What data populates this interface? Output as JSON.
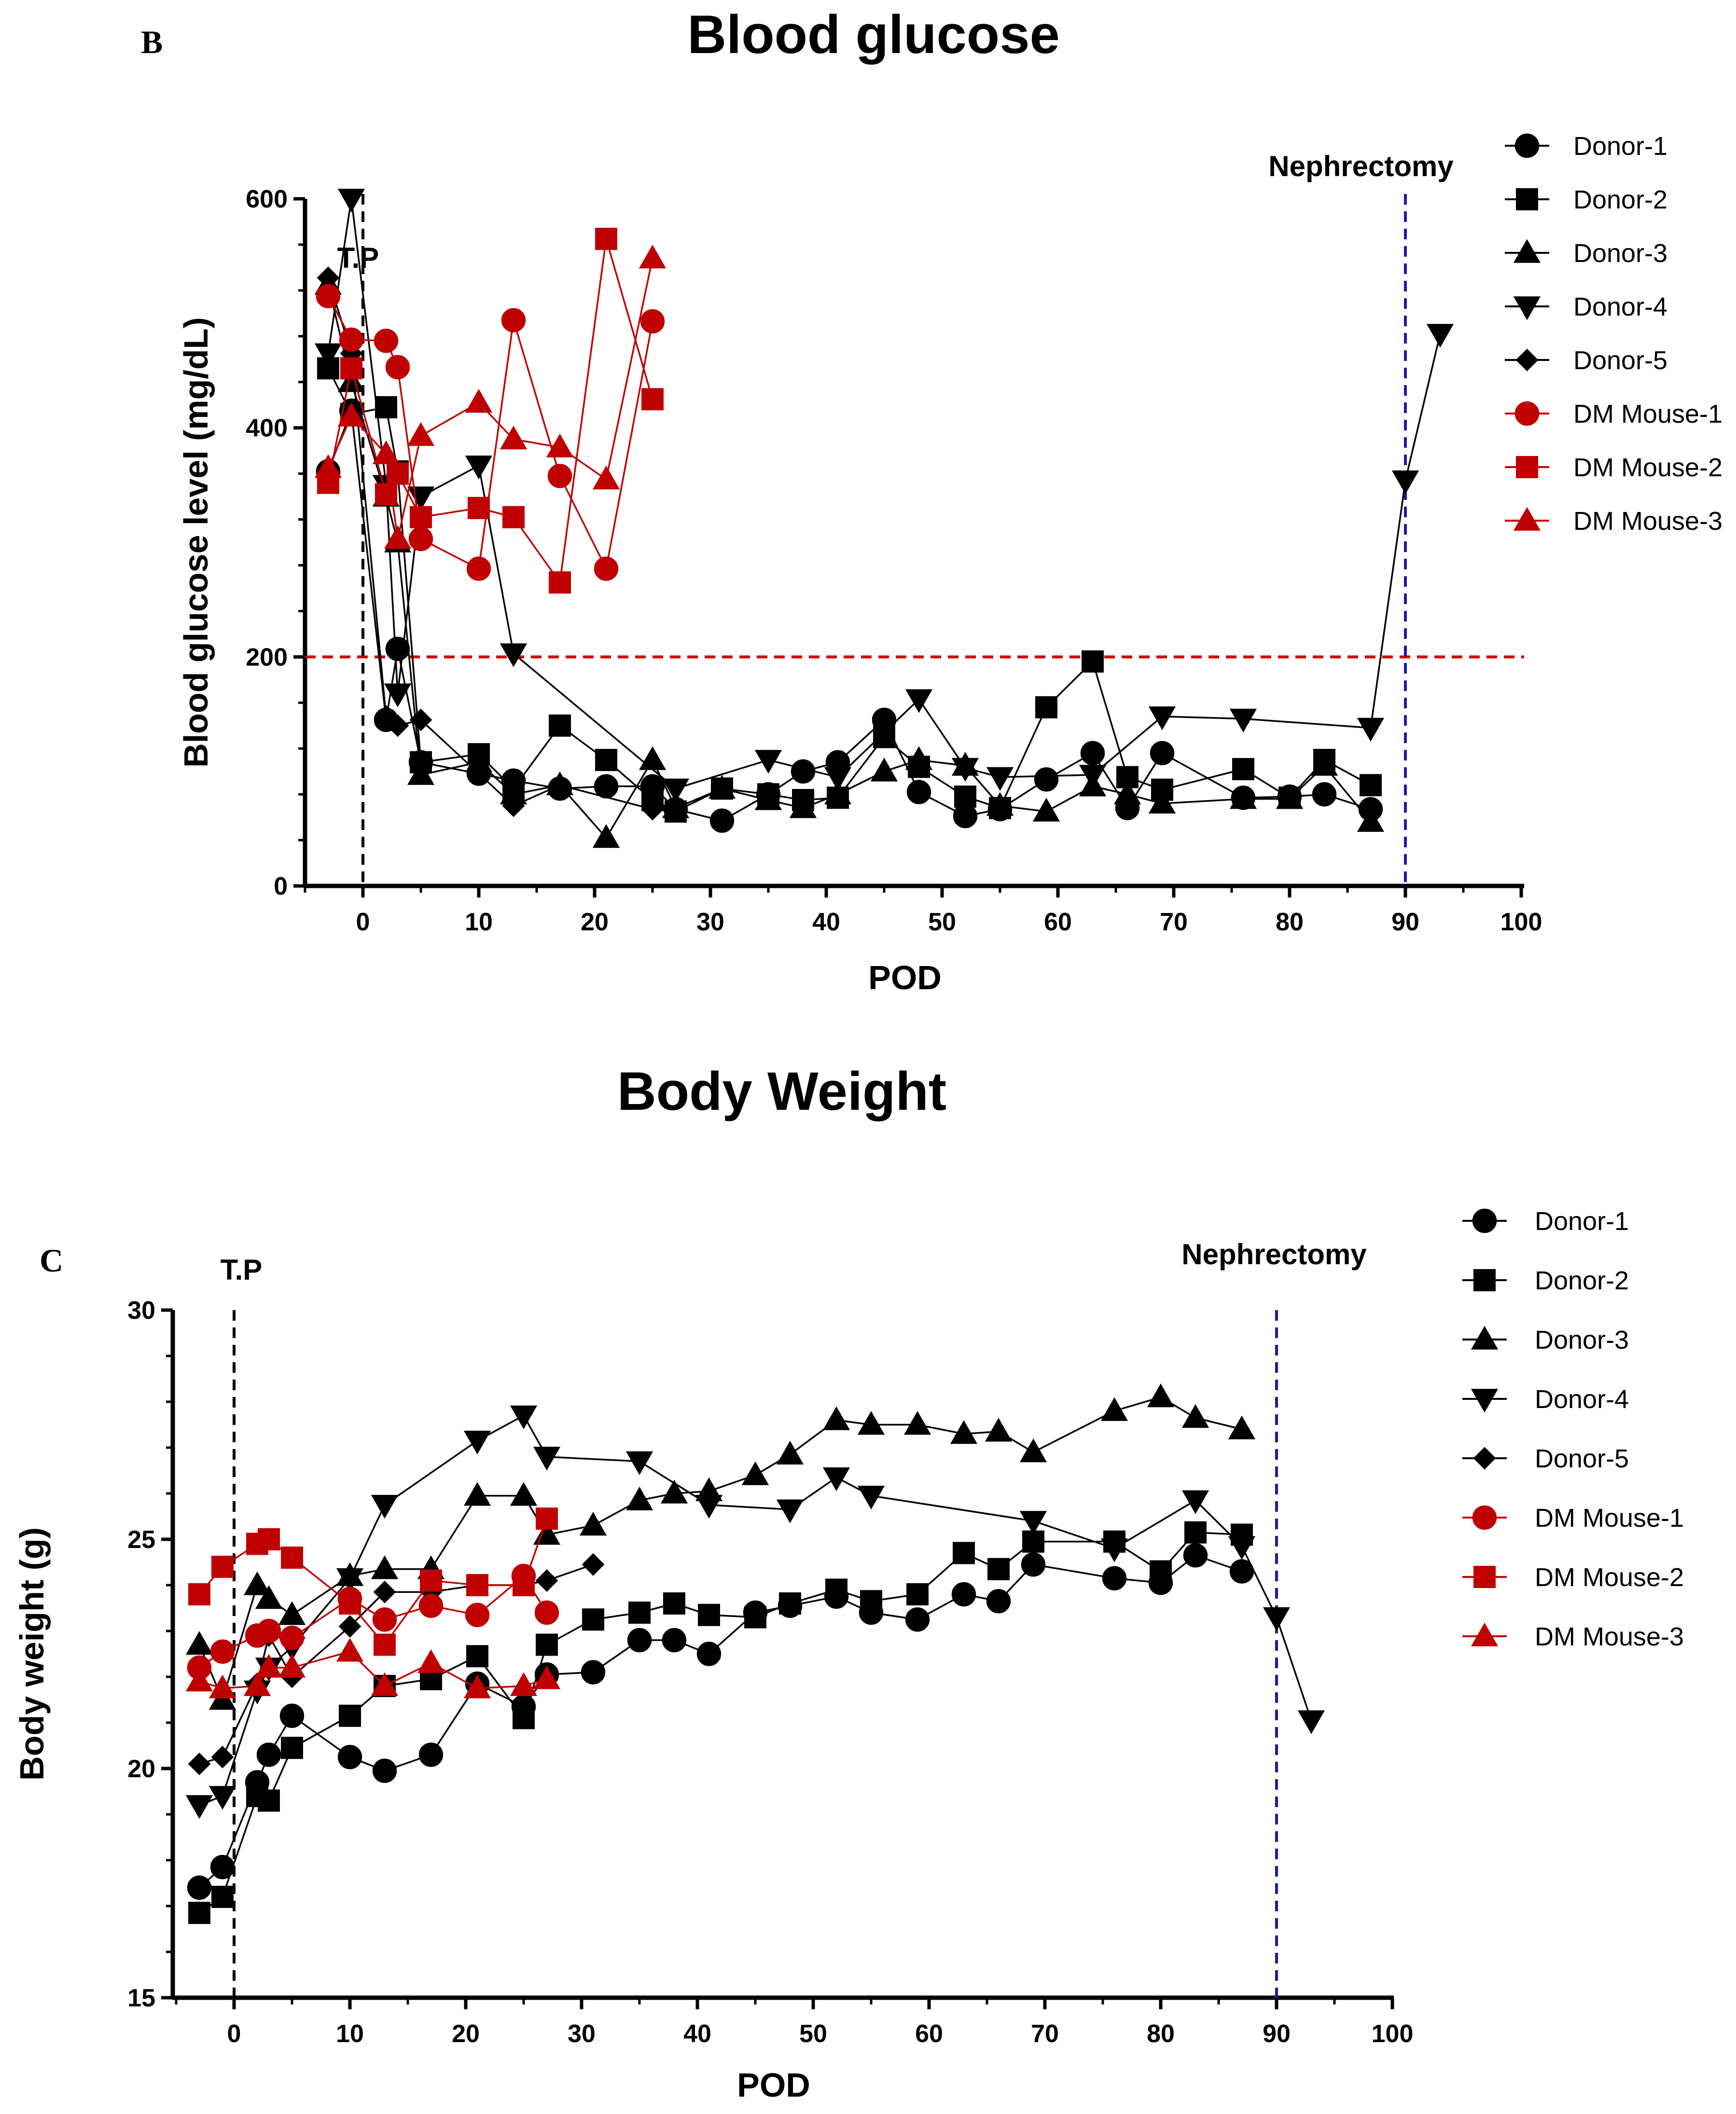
{
  "colors": {
    "black": "#000000",
    "red": "#c00000",
    "refline": "#cc0000",
    "nephline": "#1a1aa8"
  },
  "chart_data": [
    {
      "panel": "B",
      "type": "line",
      "title": "Blood glucose",
      "xlabel": "POD",
      "ylabel": "Blood glucose level (mg/dL)",
      "xlim": [
        -6,
        100
      ],
      "ylim": [
        0,
        600
      ],
      "xticks": [
        0,
        10,
        20,
        30,
        40,
        50,
        60,
        70,
        80,
        90,
        100
      ],
      "yticks": [
        0,
        200,
        400,
        600
      ],
      "annotations": [
        {
          "text": "T.P",
          "x": 0
        },
        {
          "text": "Nephrectomy",
          "x": 90
        }
      ],
      "reference_lines": [
        {
          "orientation": "horizontal",
          "value": 200,
          "style": "dashed",
          "color": "red"
        },
        {
          "orientation": "vertical",
          "value": 0,
          "style": "dashed",
          "color": "black"
        },
        {
          "orientation": "vertical",
          "value": 90,
          "style": "dashed",
          "color": "blue"
        }
      ],
      "legend": "top-right",
      "series": [
        {
          "name": "Donor-1",
          "marker": "circle",
          "color": "black",
          "x": [
            -3,
            -1,
            2,
            3,
            5,
            10,
            13,
            17,
            21,
            25,
            27,
            31,
            35,
            38,
            41,
            45,
            48,
            52,
            55,
            59,
            63,
            66,
            69,
            76,
            80,
            83,
            87
          ],
          "y": [
            362,
            415,
            145,
            207,
            108,
            98,
            92,
            85,
            87,
            87,
            67,
            57,
            80,
            100,
            108,
            145,
            82,
            61,
            67,
            93,
            116,
            68,
            116,
            77,
            78,
            80,
            67
          ]
        },
        {
          "name": "Donor-2",
          "marker": "square",
          "color": "black",
          "x": [
            -3,
            -1,
            2,
            3,
            5,
            10,
            13,
            17,
            21,
            25,
            27,
            31,
            35,
            38,
            41,
            45,
            48,
            52,
            55,
            59,
            63,
            66,
            69,
            76,
            80,
            83,
            87
          ],
          "y": [
            452,
            412,
            418,
            362,
            108,
            115,
            85,
            140,
            110,
            75,
            65,
            85,
            80,
            75,
            77,
            130,
            104,
            78,
            68,
            156,
            196,
            95,
            84,
            102,
            77,
            110,
            88
          ]
        },
        {
          "name": "Donor-3",
          "marker": "triangle-up",
          "color": "black",
          "x": [
            -3,
            -1,
            2,
            3,
            5,
            10,
            13,
            17,
            21,
            25,
            27,
            31,
            35,
            38,
            41,
            45,
            48,
            52,
            55,
            59,
            63,
            66,
            69,
            76,
            80,
            83,
            87
          ],
          "y": [
            525,
            440,
            340,
            300,
            97,
            108,
            80,
            88,
            42,
            110,
            68,
            85,
            75,
            68,
            80,
            100,
            110,
            105,
            70,
            65,
            87,
            80,
            72,
            76,
            76,
            105,
            56
          ]
        },
        {
          "name": "Donor-4",
          "marker": "triangle-down",
          "color": "black",
          "x": [
            -3,
            -1,
            2,
            3,
            5,
            10,
            13,
            27,
            35,
            41,
            48,
            52,
            55,
            63,
            69,
            76,
            87,
            90,
            93
          ],
          "y": [
            465,
            600,
            350,
            168,
            340,
            367,
            203,
            85,
            110,
            95,
            163,
            103,
            95,
            97,
            148,
            146,
            138,
            354,
            482
          ]
        },
        {
          "name": "Donor-5",
          "marker": "diamond",
          "color": "black",
          "x": [
            -3,
            -1,
            2,
            3,
            5,
            13,
            17,
            25
          ],
          "y": [
            531,
            465,
            148,
            140,
            145,
            70,
            88,
            67
          ]
        },
        {
          "name": "DM Mouse-1",
          "marker": "circle",
          "color": "red",
          "x": [
            -3,
            -1,
            2,
            3,
            5,
            10,
            13,
            17,
            21,
            25
          ],
          "y": [
            515,
            477,
            476,
            453,
            303,
            277,
            494,
            358,
            277,
            493
          ]
        },
        {
          "name": "DM Mouse-2",
          "marker": "square",
          "color": "red",
          "x": [
            -3,
            -1,
            2,
            3,
            5,
            10,
            13,
            17,
            21,
            25
          ],
          "y": [
            352,
            452,
            342,
            360,
            322,
            330,
            322,
            265,
            565,
            425
          ]
        },
        {
          "name": "DM Mouse-3",
          "marker": "triangle-up",
          "color": "red",
          "x": [
            -3,
            -1,
            2,
            3,
            5,
            10,
            13,
            17,
            21,
            25
          ],
          "y": [
            365,
            410,
            377,
            303,
            393,
            422,
            390,
            383,
            355,
            548
          ]
        }
      ]
    },
    {
      "panel": "C",
      "type": "line",
      "title": "Body Weight",
      "xlabel": "POD",
      "ylabel": "Body weight (g)",
      "xlim": [
        -5,
        100
      ],
      "ylim": [
        15,
        30
      ],
      "xticks": [
        0,
        10,
        20,
        30,
        40,
        50,
        60,
        70,
        80,
        90,
        100
      ],
      "yticks": [
        15,
        20,
        25,
        30
      ],
      "annotations": [
        {
          "text": "T.P",
          "x": 0
        },
        {
          "text": "Nephrectomy",
          "x": 90
        }
      ],
      "reference_lines": [
        {
          "orientation": "vertical",
          "value": 0,
          "style": "dashed",
          "color": "black"
        },
        {
          "orientation": "vertical",
          "value": 90,
          "style": "dashed",
          "color": "blue"
        }
      ],
      "legend": "top-right",
      "series": [
        {
          "name": "Donor-1",
          "marker": "circle",
          "color": "black",
          "x": [
            -3,
            -1,
            2,
            3,
            5,
            10,
            13,
            17,
            21,
            25,
            27,
            31,
            35,
            38,
            41,
            45,
            48,
            52,
            55,
            59,
            63,
            66,
            69,
            76,
            80,
            83,
            87
          ],
          "y": [
            17.4,
            17.85,
            19.7,
            20.3,
            21.15,
            20.25,
            19.95,
            20.3,
            21.85,
            21.35,
            22.05,
            22.1,
            22.8,
            22.8,
            22.5,
            23.4,
            23.55,
            23.75,
            23.4,
            23.25,
            23.8,
            23.65,
            24.45,
            24.15,
            24.05,
            24.65,
            24.3
          ]
        },
        {
          "name": "Donor-2",
          "marker": "square",
          "color": "black",
          "x": [
            -3,
            -1,
            2,
            3,
            5,
            10,
            13,
            17,
            21,
            25,
            27,
            31,
            35,
            38,
            41,
            45,
            48,
            52,
            55,
            59,
            63,
            66,
            69,
            76,
            80,
            83,
            87
          ],
          "y": [
            16.85,
            17.2,
            19.4,
            19.3,
            20.45,
            21.15,
            21.8,
            21.95,
            22.45,
            21.1,
            22.7,
            23.25,
            23.4,
            23.6,
            23.35,
            23.3,
            23.6,
            23.9,
            23.65,
            23.8,
            24.7,
            24.35,
            24.95,
            24.95,
            24.3,
            25.15,
            25.1
          ]
        },
        {
          "name": "Donor-3",
          "marker": "triangle-up",
          "color": "black",
          "x": [
            -3,
            -1,
            2,
            3,
            5,
            10,
            13,
            17,
            21,
            25,
            27,
            31,
            35,
            38,
            41,
            45,
            48,
            52,
            55,
            59,
            63,
            66,
            69,
            76,
            80,
            83,
            87
          ],
          "y": [
            22.7,
            21.5,
            24.0,
            23.7,
            23.35,
            24.2,
            24.35,
            24.35,
            25.95,
            25.95,
            25.1,
            25.3,
            25.85,
            26.0,
            26.05,
            26.4,
            26.85,
            27.6,
            27.5,
            27.5,
            27.3,
            27.35,
            26.9,
            27.8,
            28.1,
            27.65,
            27.4
          ]
        },
        {
          "name": "Donor-4",
          "marker": "triangle-down",
          "color": "black",
          "x": [
            -3,
            -1,
            2,
            3,
            5,
            10,
            13,
            21,
            25,
            27,
            35,
            41,
            48,
            52,
            55,
            69,
            76,
            83,
            87,
            90,
            93
          ],
          "y": [
            19.2,
            19.4,
            21.7,
            22.2,
            22.65,
            24.15,
            25.75,
            27.15,
            27.7,
            26.8,
            26.7,
            25.75,
            25.65,
            26.35,
            25.95,
            25.4,
            24.8,
            25.85,
            24.85,
            23.3,
            21.05
          ]
        },
        {
          "name": "Donor-5",
          "marker": "diamond",
          "color": "black",
          "x": [
            -3,
            -1,
            2,
            3,
            5,
            10,
            13,
            17,
            21,
            25,
            27,
            31
          ],
          "y": [
            20.1,
            20.25,
            21.85,
            22.9,
            22.0,
            23.1,
            23.85,
            23.85,
            24.0,
            24.0,
            24.1,
            24.45
          ]
        },
        {
          "name": "DM Mouse-1",
          "marker": "circle",
          "color": "red",
          "x": [
            -3,
            -1,
            2,
            3,
            5,
            10,
            13,
            17,
            21,
            25,
            27
          ],
          "y": [
            22.2,
            22.55,
            22.9,
            23.0,
            22.85,
            23.7,
            23.25,
            23.55,
            23.35,
            24.2,
            23.4
          ]
        },
        {
          "name": "DM Mouse-2",
          "marker": "square",
          "color": "red",
          "x": [
            -3,
            -1,
            2,
            3,
            5,
            10,
            13,
            17,
            21,
            25,
            27
          ],
          "y": [
            23.8,
            24.4,
            24.9,
            25.0,
            24.6,
            23.6,
            22.7,
            24.1,
            24.0,
            24.0,
            25.45
          ]
        },
        {
          "name": "DM Mouse-3",
          "marker": "triangle-up",
          "color": "red",
          "x": [
            -3,
            -1,
            2,
            3,
            5,
            10,
            13,
            17,
            21,
            25,
            27
          ],
          "y": [
            21.9,
            21.75,
            21.8,
            22.2,
            22.2,
            22.55,
            21.8,
            22.3,
            21.75,
            21.8,
            21.95
          ]
        }
      ]
    }
  ]
}
